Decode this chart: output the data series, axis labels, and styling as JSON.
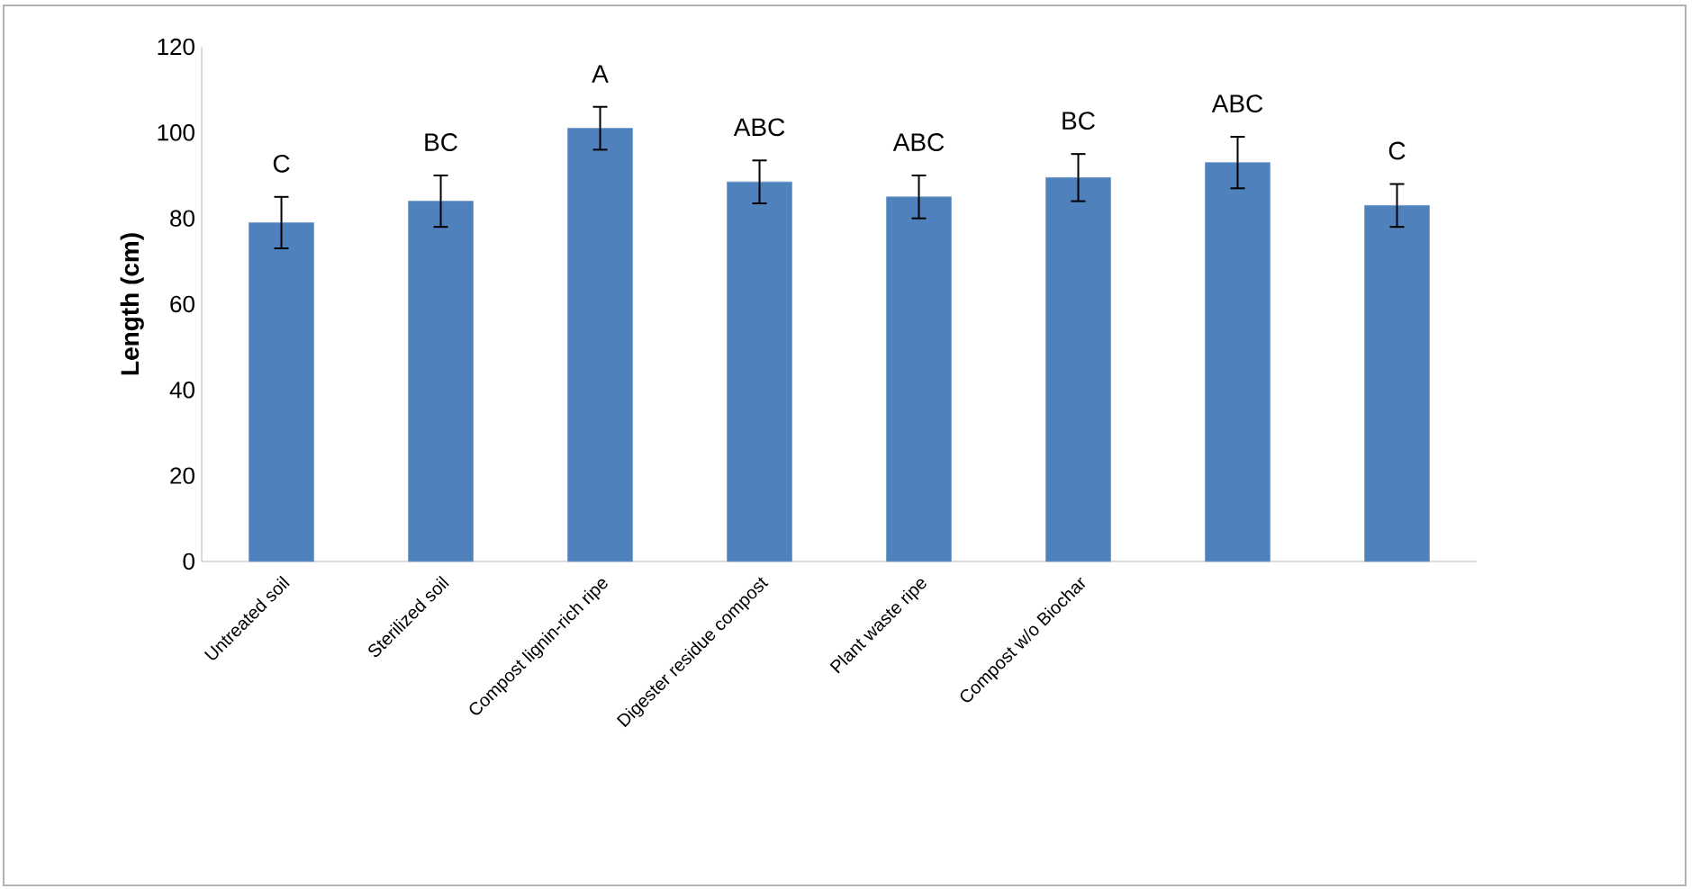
{
  "chart_data": {
    "type": "bar",
    "ylabel": "Length (cm)",
    "categories": [
      "Untreated soil",
      "Sterilized soil",
      "Compost lignin-rich ripe",
      "Digester residue compost",
      "Plant waste ripe",
      "Compost w/o Biochar",
      null,
      null
    ],
    "values": [
      79,
      84,
      101,
      88.5,
      85,
      89.5,
      93,
      83
    ],
    "errors": [
      6,
      6,
      5,
      5,
      5,
      5.5,
      6,
      5
    ],
    "color": "#4f81bd",
    "ylim": [
      0,
      120
    ],
    "yticks": [
      0,
      20,
      40,
      60,
      80,
      100,
      120
    ],
    "annotations": [
      "C",
      "BC",
      "A",
      "ABC",
      "ABC",
      "BC",
      "ABC",
      "C"
    ],
    "grid": false
  }
}
